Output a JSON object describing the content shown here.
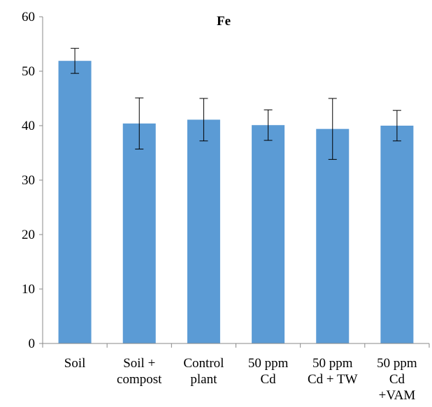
{
  "chart_data": {
    "type": "bar",
    "title": "Fe",
    "xlabel": "",
    "ylabel": "",
    "ylim": [
      0,
      60
    ],
    "yticks": [
      0,
      10,
      20,
      30,
      40,
      50,
      60
    ],
    "grid": false,
    "legend": "none",
    "bar_color": "#5b9bd5",
    "categories": [
      [
        "Soil"
      ],
      [
        "Soil +",
        "compost"
      ],
      [
        "Control",
        "plant"
      ],
      [
        "50 ppm",
        "Cd"
      ],
      [
        "50 ppm",
        "Cd + TW"
      ],
      [
        "50 ppm",
        "Cd",
        "+VAM"
      ]
    ],
    "values": [
      51.9,
      40.4,
      41.1,
      40.1,
      39.4,
      40.0
    ],
    "errors": [
      2.3,
      4.7,
      3.9,
      2.8,
      5.6,
      2.8
    ]
  }
}
